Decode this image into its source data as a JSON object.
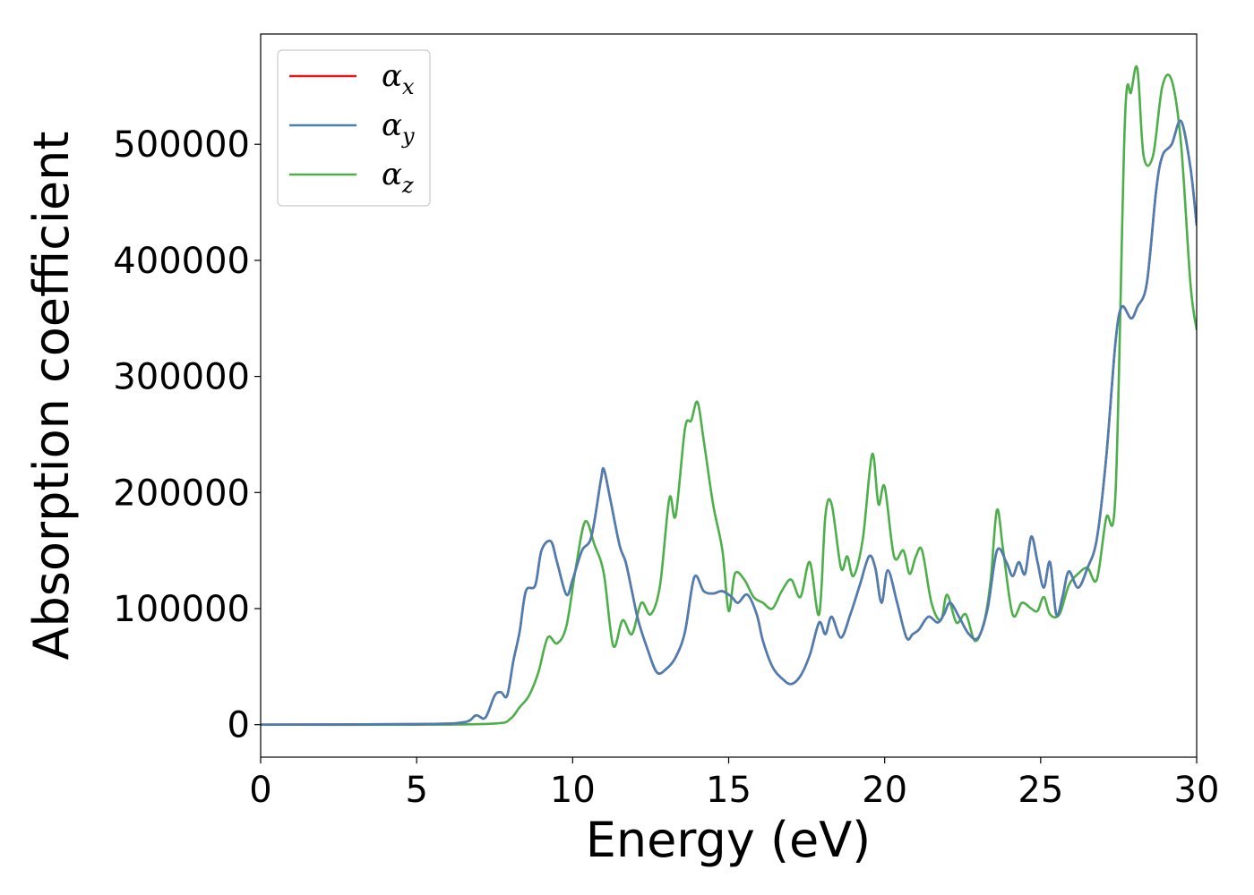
{
  "chart_data": {
    "type": "line",
    "xlabel": "Energy (eV)",
    "ylabel": "Absorption coefficient",
    "xlim": [
      0,
      30
    ],
    "ylim": [
      -28000,
      595000
    ],
    "xticks": [
      0,
      5,
      10,
      15,
      20,
      25,
      30
    ],
    "yticks": [
      0,
      100000,
      200000,
      300000,
      400000,
      500000
    ],
    "grid": false,
    "legend_position": "top-left",
    "series": [
      {
        "name": "α_x",
        "legend_main": "α",
        "legend_sub": "x",
        "color": "#e41a1c",
        "x": [
          0,
          5,
          6.5,
          6.9,
          7.2,
          7.5,
          7.7,
          7.9,
          8.1,
          8.3,
          8.5,
          8.8,
          9.0,
          9.3,
          9.5,
          9.8,
          10.0,
          10.3,
          10.6,
          10.9,
          11.0,
          11.2,
          11.5,
          11.7,
          11.9,
          12.1,
          12.4,
          12.7,
          13.0,
          13.3,
          13.6,
          13.9,
          14.2,
          14.5,
          14.8,
          15.1,
          15.3,
          15.6,
          15.9,
          16.1,
          16.4,
          16.7,
          17.0,
          17.3,
          17.6,
          17.9,
          18.1,
          18.3,
          18.6,
          18.9,
          19.2,
          19.5,
          19.7,
          19.9,
          20.1,
          20.4,
          20.7,
          20.9,
          21.1,
          21.4,
          21.7,
          21.9,
          22.1,
          22.4,
          22.7,
          23.0,
          23.3,
          23.6,
          23.9,
          24.1,
          24.3,
          24.5,
          24.7,
          24.9,
          25.1,
          25.3,
          25.5,
          25.7,
          25.9,
          26.2,
          26.5,
          26.8,
          27.1,
          27.4,
          27.6,
          27.9,
          28.1,
          28.4,
          28.7,
          28.9,
          29.2,
          29.5,
          29.8,
          30.0
        ],
        "y": [
          0,
          500,
          2000,
          8000,
          6000,
          25000,
          28000,
          25000,
          55000,
          80000,
          115000,
          120000,
          150000,
          158000,
          140000,
          112000,
          125000,
          150000,
          162000,
          210000,
          220000,
          195000,
          155000,
          140000,
          115000,
          90000,
          65000,
          45000,
          48000,
          58000,
          80000,
          127000,
          115000,
          113000,
          115000,
          110000,
          105000,
          112000,
          95000,
          72000,
          50000,
          40000,
          35000,
          42000,
          60000,
          88000,
          78000,
          93000,
          75000,
          95000,
          120000,
          145000,
          135000,
          105000,
          133000,
          105000,
          75000,
          78000,
          82000,
          93000,
          88000,
          95000,
          105000,
          92000,
          78000,
          75000,
          100000,
          150000,
          140000,
          128000,
          140000,
          130000,
          162000,
          140000,
          118000,
          140000,
          95000,
          110000,
          132000,
          118000,
          135000,
          160000,
          230000,
          330000,
          360000,
          350000,
          360000,
          380000,
          460000,
          490000,
          500000,
          520000,
          480000,
          430000
        ]
      },
      {
        "name": "α_y",
        "legend_main": "α",
        "legend_sub": "y",
        "color": "#4a7fb5",
        "x": [
          0,
          5,
          6.5,
          6.9,
          7.2,
          7.5,
          7.7,
          7.9,
          8.1,
          8.3,
          8.5,
          8.8,
          9.0,
          9.3,
          9.5,
          9.8,
          10.0,
          10.3,
          10.6,
          10.9,
          11.0,
          11.2,
          11.5,
          11.7,
          11.9,
          12.1,
          12.4,
          12.7,
          13.0,
          13.3,
          13.6,
          13.9,
          14.2,
          14.5,
          14.8,
          15.1,
          15.3,
          15.6,
          15.9,
          16.1,
          16.4,
          16.7,
          17.0,
          17.3,
          17.6,
          17.9,
          18.1,
          18.3,
          18.6,
          18.9,
          19.2,
          19.5,
          19.7,
          19.9,
          20.1,
          20.4,
          20.7,
          20.9,
          21.1,
          21.4,
          21.7,
          21.9,
          22.1,
          22.4,
          22.7,
          23.0,
          23.3,
          23.6,
          23.9,
          24.1,
          24.3,
          24.5,
          24.7,
          24.9,
          25.1,
          25.3,
          25.5,
          25.7,
          25.9,
          26.2,
          26.5,
          26.8,
          27.1,
          27.4,
          27.6,
          27.9,
          28.1,
          28.4,
          28.7,
          28.9,
          29.2,
          29.5,
          29.8,
          30.0
        ],
        "y": [
          0,
          500,
          2000,
          8000,
          6000,
          25000,
          28000,
          25000,
          55000,
          80000,
          115000,
          120000,
          150000,
          158000,
          140000,
          112000,
          125000,
          150000,
          162000,
          210000,
          220000,
          195000,
          155000,
          140000,
          115000,
          90000,
          65000,
          45000,
          48000,
          58000,
          80000,
          127000,
          115000,
          113000,
          115000,
          110000,
          105000,
          112000,
          95000,
          72000,
          50000,
          40000,
          35000,
          42000,
          60000,
          88000,
          78000,
          93000,
          75000,
          95000,
          120000,
          145000,
          135000,
          105000,
          133000,
          105000,
          75000,
          78000,
          82000,
          93000,
          88000,
          95000,
          105000,
          92000,
          78000,
          75000,
          100000,
          150000,
          140000,
          128000,
          140000,
          130000,
          162000,
          140000,
          118000,
          140000,
          95000,
          110000,
          132000,
          118000,
          135000,
          160000,
          230000,
          330000,
          360000,
          350000,
          360000,
          380000,
          460000,
          490000,
          500000,
          520000,
          480000,
          430000
        ]
      },
      {
        "name": "α_z",
        "legend_main": "α",
        "legend_sub": "z",
        "color": "#4daf4a",
        "x": [
          0,
          5,
          7.5,
          8.0,
          8.3,
          8.6,
          8.9,
          9.2,
          9.5,
          9.8,
          10.1,
          10.4,
          10.7,
          11.0,
          11.3,
          11.6,
          11.9,
          12.2,
          12.5,
          12.8,
          13.1,
          13.3,
          13.6,
          13.8,
          14.0,
          14.2,
          14.5,
          14.8,
          15.0,
          15.2,
          15.5,
          15.8,
          16.1,
          16.4,
          16.7,
          17.0,
          17.3,
          17.6,
          17.9,
          18.1,
          18.3,
          18.6,
          18.8,
          19.0,
          19.3,
          19.6,
          19.8,
          20.0,
          20.3,
          20.6,
          20.8,
          21.0,
          21.2,
          21.5,
          21.8,
          22.0,
          22.3,
          22.6,
          22.9,
          23.2,
          23.4,
          23.6,
          23.8,
          24.1,
          24.4,
          24.7,
          24.9,
          25.1,
          25.3,
          25.6,
          25.9,
          26.2,
          26.5,
          26.8,
          27.1,
          27.4,
          27.7,
          27.9,
          28.1,
          28.3,
          28.6,
          28.9,
          29.2,
          29.5,
          29.8,
          30.0
        ],
        "y": [
          0,
          0,
          1000,
          5000,
          15000,
          25000,
          45000,
          75000,
          70000,
          85000,
          135000,
          175000,
          155000,
          130000,
          68000,
          90000,
          78000,
          105000,
          95000,
          120000,
          195000,
          180000,
          255000,
          262000,
          278000,
          245000,
          190000,
          150000,
          98000,
          130000,
          125000,
          110000,
          105000,
          100000,
          115000,
          125000,
          110000,
          140000,
          95000,
          180000,
          190000,
          135000,
          145000,
          128000,
          160000,
          233000,
          190000,
          205000,
          145000,
          150000,
          130000,
          145000,
          150000,
          105000,
          90000,
          112000,
          88000,
          95000,
          72000,
          90000,
          125000,
          185000,
          150000,
          95000,
          105000,
          100000,
          98000,
          110000,
          95000,
          95000,
          120000,
          130000,
          135000,
          125000,
          178000,
          200000,
          520000,
          545000,
          565000,
          490000,
          490000,
          550000,
          555000,
          500000,
          380000,
          340000
        ]
      }
    ]
  }
}
